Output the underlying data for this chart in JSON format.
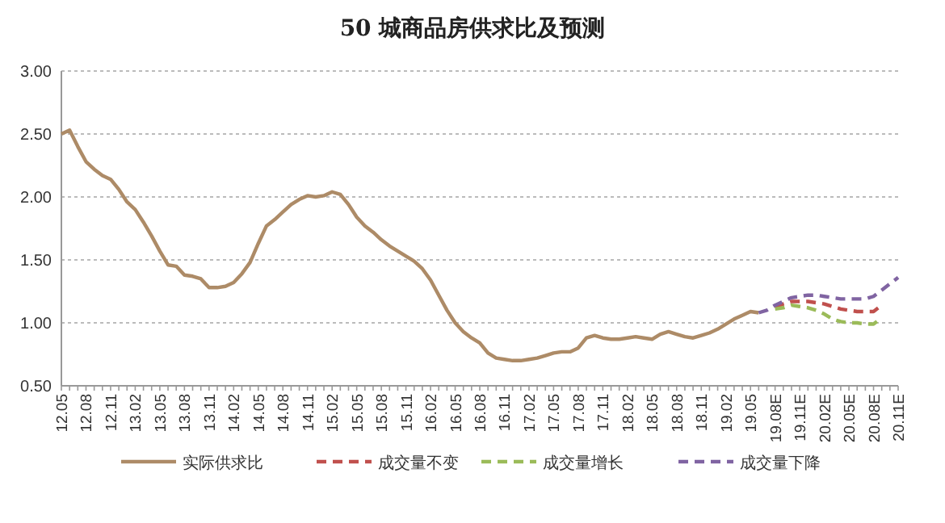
{
  "chart_data": {
    "type": "line",
    "title": "50 城商品房供求比及预测",
    "categories": [
      "12.05",
      null,
      null,
      "12.08",
      null,
      null,
      "12.11",
      null,
      null,
      "13.02",
      null,
      null,
      "13.05",
      null,
      null,
      "13.08",
      null,
      null,
      "13.11",
      null,
      null,
      "14.02",
      null,
      null,
      "14.05",
      null,
      null,
      "14.08",
      null,
      null,
      "14.11",
      null,
      null,
      "15.02",
      null,
      null,
      "15.05",
      null,
      null,
      "15.08",
      null,
      null,
      "15.11",
      null,
      null,
      "16.02",
      null,
      null,
      "16.05",
      null,
      null,
      "16.08",
      null,
      null,
      "16.11",
      null,
      null,
      "17.02",
      null,
      null,
      "17.05",
      null,
      null,
      "17.08",
      null,
      null,
      "17.11",
      null,
      null,
      "18.02",
      null,
      null,
      "18.05",
      null,
      null,
      "18.08",
      null,
      null,
      "18.11",
      null,
      null,
      "19.02",
      null,
      null,
      "19.05",
      null,
      null,
      "19.08E",
      null,
      null,
      "19.11E",
      null,
      null,
      "20.02E",
      null,
      null,
      "20.05E",
      null,
      null,
      "20.08E",
      null,
      null,
      "20.11E"
    ],
    "series": [
      {
        "name": "实际供求比",
        "color": "#ad8b67",
        "line_style": "solid",
        "values": [
          2.5,
          2.53,
          2.4,
          2.28,
          2.22,
          2.17,
          2.14,
          2.06,
          1.96,
          1.9,
          1.8,
          1.69,
          1.57,
          1.46,
          1.45,
          1.38,
          1.37,
          1.35,
          1.28,
          1.28,
          1.29,
          1.32,
          1.39,
          1.48,
          1.63,
          1.77,
          1.82,
          1.88,
          1.94,
          1.98,
          2.01,
          2.0,
          2.01,
          2.04,
          2.02,
          1.94,
          1.84,
          1.77,
          1.72,
          1.66,
          1.61,
          1.57,
          1.53,
          1.49,
          1.43,
          1.34,
          1.22,
          1.1,
          1.0,
          0.93,
          0.88,
          0.84,
          0.76,
          0.72,
          0.71,
          0.7,
          0.7,
          0.71,
          0.72,
          0.74,
          0.76,
          0.77,
          0.77,
          0.8,
          0.88,
          0.9,
          0.88,
          0.87,
          0.87,
          0.88,
          0.89,
          0.88,
          0.87,
          0.91,
          0.93,
          0.91,
          0.89,
          0.88,
          0.9,
          0.92,
          0.95,
          0.99,
          1.03,
          1.06,
          1.09,
          1.08,
          null,
          null,
          null,
          null,
          null,
          null,
          null,
          null,
          null,
          null,
          null,
          null,
          null,
          null,
          null,
          null,
          null
        ]
      },
      {
        "name": "成交量不变",
        "color": "#c0504d",
        "line_style": "dashed",
        "values": [
          null,
          null,
          null,
          null,
          null,
          null,
          null,
          null,
          null,
          null,
          null,
          null,
          null,
          null,
          null,
          null,
          null,
          null,
          null,
          null,
          null,
          null,
          null,
          null,
          null,
          null,
          null,
          null,
          null,
          null,
          null,
          null,
          null,
          null,
          null,
          null,
          null,
          null,
          null,
          null,
          null,
          null,
          null,
          null,
          null,
          null,
          null,
          null,
          null,
          null,
          null,
          null,
          null,
          null,
          null,
          null,
          null,
          null,
          null,
          null,
          null,
          null,
          null,
          null,
          null,
          null,
          null,
          null,
          null,
          null,
          null,
          null,
          null,
          null,
          null,
          null,
          null,
          null,
          null,
          null,
          null,
          null,
          null,
          null,
          null,
          null,
          null,
          1.12,
          1.15,
          1.17,
          1.17,
          1.17,
          1.16,
          1.15,
          1.13,
          1.11,
          1.1,
          1.09,
          1.09,
          1.09,
          1.14,
          null,
          null
        ]
      },
      {
        "name": "成交量增长",
        "color": "#9bbb59",
        "line_style": "dashed",
        "values": [
          null,
          null,
          null,
          null,
          null,
          null,
          null,
          null,
          null,
          null,
          null,
          null,
          null,
          null,
          null,
          null,
          null,
          null,
          null,
          null,
          null,
          null,
          null,
          null,
          null,
          null,
          null,
          null,
          null,
          null,
          null,
          null,
          null,
          null,
          null,
          null,
          null,
          null,
          null,
          null,
          null,
          null,
          null,
          null,
          null,
          null,
          null,
          null,
          null,
          null,
          null,
          null,
          null,
          null,
          null,
          null,
          null,
          null,
          null,
          null,
          null,
          null,
          null,
          null,
          null,
          null,
          null,
          null,
          null,
          null,
          null,
          null,
          null,
          null,
          null,
          null,
          null,
          null,
          null,
          null,
          null,
          null,
          null,
          null,
          null,
          null,
          null,
          1.11,
          1.12,
          1.14,
          1.13,
          1.12,
          1.1,
          1.07,
          1.03,
          1.01,
          1.0,
          1.0,
          0.99,
          0.99,
          1.04,
          null,
          null
        ]
      },
      {
        "name": "成交量下降",
        "color": "#8064a2",
        "line_style": "dashed",
        "values": [
          null,
          null,
          null,
          null,
          null,
          null,
          null,
          null,
          null,
          null,
          null,
          null,
          null,
          null,
          null,
          null,
          null,
          null,
          null,
          null,
          null,
          null,
          null,
          null,
          null,
          null,
          null,
          null,
          null,
          null,
          null,
          null,
          null,
          null,
          null,
          null,
          null,
          null,
          null,
          null,
          null,
          null,
          null,
          null,
          null,
          null,
          null,
          null,
          null,
          null,
          null,
          null,
          null,
          null,
          null,
          null,
          null,
          null,
          null,
          null,
          null,
          null,
          null,
          null,
          null,
          null,
          null,
          null,
          null,
          null,
          null,
          null,
          null,
          null,
          null,
          null,
          null,
          null,
          null,
          null,
          null,
          null,
          null,
          null,
          null,
          1.08,
          1.1,
          1.14,
          1.17,
          1.2,
          1.21,
          1.22,
          1.22,
          1.21,
          1.2,
          1.19,
          1.19,
          1.19,
          1.19,
          1.21,
          1.26,
          1.31,
          1.36
        ]
      }
    ],
    "ylim": [
      0.5,
      3
    ],
    "yticks": [
      {
        "value": 0.5,
        "label": "0.50"
      },
      {
        "value": 1,
        "label": "1.00"
      },
      {
        "value": 1.5,
        "label": "1.50"
      },
      {
        "value": 2,
        "label": "2.00"
      },
      {
        "value": 2.5,
        "label": "2.50"
      },
      {
        "value": 3,
        "label": "3.00"
      }
    ],
    "grid": "y",
    "legend": "bottom",
    "marker": "none"
  }
}
